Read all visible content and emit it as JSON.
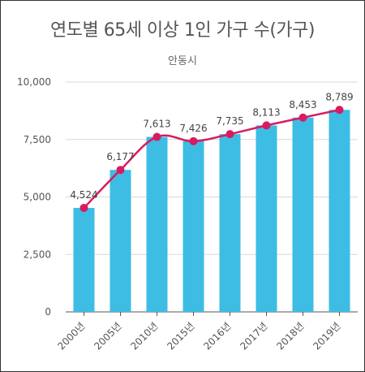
{
  "chart_data": {
    "type": "bar",
    "title": "연도별 65세 이상 1인 가구 수(가구)",
    "subtitle": "안동시",
    "categories": [
      "2000년",
      "2005년",
      "2010년",
      "2015년",
      "2016년",
      "2017년",
      "2018년",
      "2019년"
    ],
    "series": [
      {
        "type": "bar",
        "values": [
          4524,
          6177,
          7613,
          7426,
          7735,
          8113,
          8453,
          8789
        ]
      },
      {
        "type": "line",
        "values": [
          4524,
          6177,
          7613,
          7426,
          7735,
          8113,
          8453,
          8789
        ]
      }
    ],
    "data_labels": [
      "4,524",
      "6,177",
      "7,613",
      "7,426",
      "7,735",
      "8,113",
      "8,453",
      "8,789"
    ],
    "y_ticks": [
      "0",
      "2,500",
      "5,000",
      "7,500",
      "10,000"
    ],
    "y_tick_values": [
      0,
      2500,
      5000,
      7500,
      10000
    ],
    "ylim": [
      0,
      10000
    ],
    "grid": true,
    "colors": {
      "bar": "#3dbde3",
      "line": "#d81b60",
      "grid": "#d9d9d9",
      "axis": "#555555"
    }
  }
}
